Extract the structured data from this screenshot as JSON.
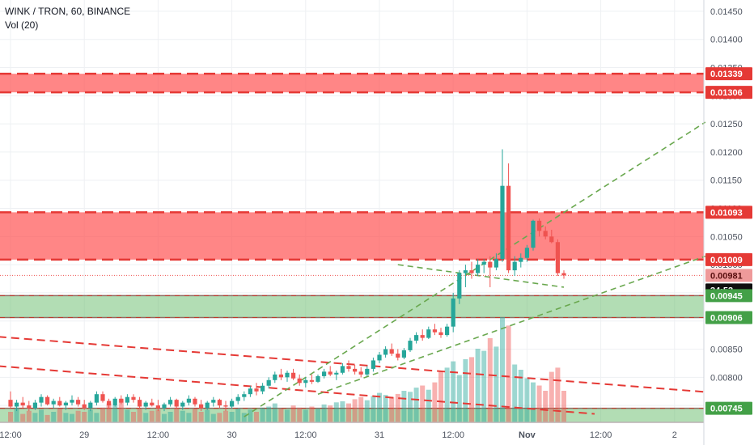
{
  "header": {
    "symbol_line": "WINK / TRON, 60, BINANCE",
    "indicator_line": "Vol (20)"
  },
  "colors": {
    "up": "#26a69a",
    "down": "#ef5350",
    "resistance_zone": "#ff5252",
    "support_zone": "#66bb6a",
    "trend_red": "#e53935",
    "trend_green": "#6aa84f",
    "label_dark": "#0f0f0f"
  },
  "chart_data": {
    "type": "candlestick",
    "symbol": "WINK / TRON",
    "interval": "60",
    "exchange": "BINANCE",
    "y_axis": {
      "ticks": [
        0.0145,
        0.014,
        0.0135,
        0.013,
        0.0125,
        0.012,
        0.0115,
        0.011,
        0.0105,
        0.01,
        0.0095,
        0.009,
        0.0085,
        0.008,
        0.0075
      ],
      "tick_labels": [
        "0.01450",
        "0.01400",
        "0.01350",
        "0.01300",
        "0.01250",
        "0.01200",
        "0.01150",
        "0.01100",
        "0.01050",
        "0.01000",
        "0.00950",
        "0.00900",
        "0.00850",
        "0.00800",
        "0.00750"
      ],
      "range": [
        0.0072,
        0.0147
      ]
    },
    "x_axis": {
      "tick_labels": [
        "12:00",
        "29",
        "12:00",
        "30",
        "12:00",
        "31",
        "12:00",
        "Nov",
        "12:00",
        "2"
      ],
      "tick_bars": [
        0,
        12,
        24,
        36,
        48,
        60,
        72,
        84,
        96,
        108
      ]
    },
    "price_labels": [
      {
        "value": "0.01339",
        "style": "red"
      },
      {
        "value": "0.01306",
        "style": "red"
      },
      {
        "value": "0.01093",
        "style": "red"
      },
      {
        "value": "0.01009",
        "style": "red"
      },
      {
        "value": "0.00981",
        "style": "light-red"
      },
      {
        "value": "34:53",
        "style": "dark"
      },
      {
        "value": "0.00945",
        "style": "green"
      },
      {
        "value": "0.00906",
        "style": "green"
      },
      {
        "value": "0.00745",
        "style": "green"
      }
    ],
    "last_price": 0.00981,
    "zones": [
      {
        "kind": "resistance",
        "top": 0.01339,
        "bottom": 0.01306
      },
      {
        "kind": "resistance",
        "top": 0.01093,
        "bottom": 0.01009
      },
      {
        "kind": "support",
        "top": 0.00945,
        "bottom": 0.00906
      },
      {
        "kind": "support",
        "top": 0.00745,
        "bottom": 0.0072
      }
    ],
    "trendlines": [
      {
        "color": "red",
        "bar1": -2,
        "p1": 0.00872,
        "bar2": 113,
        "p2": 0.00774
      },
      {
        "color": "red",
        "bar1": -2,
        "p1": 0.0082,
        "bar2": 95,
        "p2": 0.00735
      },
      {
        "color": "green",
        "bar1": 38,
        "p1": 0.0073,
        "bar2": 113,
        "p2": 0.01253
      },
      {
        "color": "green",
        "bar1": 50,
        "p1": 0.0077,
        "bar2": 113,
        "p2": 0.01015
      },
      {
        "color": "green",
        "bar1": 63,
        "p1": 0.01,
        "bar2": 90,
        "p2": 0.0096
      }
    ],
    "ohlc": [
      [
        0.0076,
        0.00775,
        0.00745,
        0.00748
      ],
      [
        0.00748,
        0.0076,
        0.0074,
        0.00755
      ],
      [
        0.00755,
        0.00765,
        0.00745,
        0.0075
      ],
      [
        0.0075,
        0.00758,
        0.0074,
        0.00745
      ],
      [
        0.00745,
        0.0076,
        0.00742,
        0.00755
      ],
      [
        0.00755,
        0.0077,
        0.00748,
        0.00765
      ],
      [
        0.00765,
        0.00768,
        0.0075,
        0.00752
      ],
      [
        0.00752,
        0.00762,
        0.00745,
        0.00758
      ],
      [
        0.00758,
        0.00765,
        0.00748,
        0.0075
      ],
      [
        0.0075,
        0.00758,
        0.00742,
        0.00755
      ],
      [
        0.00755,
        0.00768,
        0.0075,
        0.0076
      ],
      [
        0.0076,
        0.00765,
        0.00748,
        0.00752
      ],
      [
        0.00752,
        0.0076,
        0.00742,
        0.00745
      ],
      [
        0.00745,
        0.00758,
        0.0074,
        0.00755
      ],
      [
        0.00755,
        0.00775,
        0.0075,
        0.0077
      ],
      [
        0.0077,
        0.00775,
        0.00755,
        0.00758
      ],
      [
        0.00758,
        0.00762,
        0.00745,
        0.0075
      ],
      [
        0.0075,
        0.00765,
        0.00748,
        0.00762
      ],
      [
        0.00762,
        0.00768,
        0.00752,
        0.00755
      ],
      [
        0.00755,
        0.0077,
        0.0075,
        0.00765
      ],
      [
        0.00765,
        0.0077,
        0.00755,
        0.0076
      ],
      [
        0.0076,
        0.00765,
        0.00745,
        0.00748
      ],
      [
        0.00748,
        0.00758,
        0.00742,
        0.00755
      ],
      [
        0.00755,
        0.00762,
        0.00748,
        0.0075
      ],
      [
        0.0075,
        0.0076,
        0.0074,
        0.00745
      ],
      [
        0.00745,
        0.00755,
        0.0074,
        0.00752
      ],
      [
        0.00752,
        0.00765,
        0.00748,
        0.0076
      ],
      [
        0.0076,
        0.00762,
        0.00745,
        0.00748
      ],
      [
        0.00748,
        0.00758,
        0.00742,
        0.00755
      ],
      [
        0.00755,
        0.00768,
        0.0075,
        0.00762
      ],
      [
        0.00762,
        0.00765,
        0.00748,
        0.00752
      ],
      [
        0.00752,
        0.0076,
        0.0074,
        0.00745
      ],
      [
        0.00745,
        0.00758,
        0.00742,
        0.00755
      ],
      [
        0.00755,
        0.00765,
        0.00748,
        0.0076
      ],
      [
        0.0076,
        0.00762,
        0.00745,
        0.0075
      ],
      [
        0.0075,
        0.00758,
        0.0074,
        0.00748
      ],
      [
        0.00748,
        0.00762,
        0.00745,
        0.00758
      ],
      [
        0.00758,
        0.0077,
        0.00752,
        0.00765
      ],
      [
        0.00765,
        0.00775,
        0.00758,
        0.0077
      ],
      [
        0.0077,
        0.00785,
        0.00765,
        0.0078
      ],
      [
        0.0078,
        0.0079,
        0.00768,
        0.00775
      ],
      [
        0.00775,
        0.0079,
        0.0077,
        0.00785
      ],
      [
        0.00785,
        0.008,
        0.0078,
        0.00795
      ],
      [
        0.00795,
        0.0081,
        0.0079,
        0.00805
      ],
      [
        0.00805,
        0.00815,
        0.00795,
        0.008
      ],
      [
        0.008,
        0.00812,
        0.00792,
        0.00808
      ],
      [
        0.00808,
        0.00815,
        0.00795,
        0.00798
      ],
      [
        0.00798,
        0.00805,
        0.00785,
        0.0079
      ],
      [
        0.0079,
        0.008,
        0.00782,
        0.00795
      ],
      [
        0.00795,
        0.00805,
        0.00788,
        0.00792
      ],
      [
        0.00792,
        0.00805,
        0.0079,
        0.00802
      ],
      [
        0.00802,
        0.00815,
        0.00798,
        0.0081
      ],
      [
        0.0081,
        0.0082,
        0.00802,
        0.00805
      ],
      [
        0.00805,
        0.00812,
        0.00795,
        0.00808
      ],
      [
        0.00808,
        0.00825,
        0.00805,
        0.0082
      ],
      [
        0.0082,
        0.0083,
        0.0081,
        0.00815
      ],
      [
        0.00815,
        0.00822,
        0.00805,
        0.0081
      ],
      [
        0.0081,
        0.00818,
        0.008,
        0.00805
      ],
      [
        0.00805,
        0.0082,
        0.00802,
        0.00815
      ],
      [
        0.00815,
        0.00835,
        0.0081,
        0.0083
      ],
      [
        0.0083,
        0.00845,
        0.00825,
        0.0084
      ],
      [
        0.0084,
        0.00855,
        0.00835,
        0.0085
      ],
      [
        0.0085,
        0.0086,
        0.00838,
        0.00842
      ],
      [
        0.00842,
        0.0085,
        0.0083,
        0.00835
      ],
      [
        0.00835,
        0.00852,
        0.00832,
        0.00848
      ],
      [
        0.00848,
        0.0087,
        0.00845,
        0.00865
      ],
      [
        0.00865,
        0.0088,
        0.0086,
        0.00875
      ],
      [
        0.00875,
        0.00885,
        0.00865,
        0.0087
      ],
      [
        0.0087,
        0.0089,
        0.00868,
        0.00885
      ],
      [
        0.00885,
        0.00895,
        0.00875,
        0.0088
      ],
      [
        0.0088,
        0.00888,
        0.0087,
        0.00875
      ],
      [
        0.00875,
        0.00895,
        0.00872,
        0.0089
      ],
      [
        0.0089,
        0.0095,
        0.0088,
        0.0094
      ],
      [
        0.0094,
        0.0099,
        0.0093,
        0.00985
      ],
      [
        0.00985,
        0.01,
        0.0096,
        0.0099
      ],
      [
        0.0099,
        0.01005,
        0.00975,
        0.00985
      ],
      [
        0.00985,
        0.0101,
        0.0098,
        0.01
      ],
      [
        0.01,
        0.0101,
        0.00985,
        0.01005
      ],
      [
        0.01005,
        0.01015,
        0.0096,
        0.00995
      ],
      [
        0.00995,
        0.0102,
        0.0099,
        0.0101
      ],
      [
        0.0101,
        0.01205,
        0.01005,
        0.0114
      ],
      [
        0.0114,
        0.0118,
        0.00985,
        0.0099
      ],
      [
        0.0099,
        0.01015,
        0.0098,
        0.01005
      ],
      [
        0.01005,
        0.0102,
        0.00995,
        0.01012
      ],
      [
        0.01012,
        0.01035,
        0.01005,
        0.0103
      ],
      [
        0.0103,
        0.0108,
        0.01025,
        0.01078
      ],
      [
        0.01078,
        0.01082,
        0.0105,
        0.0106
      ],
      [
        0.0106,
        0.01068,
        0.01045,
        0.0105
      ],
      [
        0.0105,
        0.01062,
        0.01038,
        0.0104
      ],
      [
        0.0104,
        0.01045,
        0.0098,
        0.00985
      ],
      [
        0.00985,
        0.0099,
        0.00975,
        0.00981
      ]
    ],
    "volume": [
      10,
      14,
      8,
      11,
      9,
      12,
      7,
      10,
      13,
      9,
      8,
      11,
      10,
      12,
      9,
      14,
      18,
      16,
      22,
      12,
      10,
      13,
      9,
      11,
      12,
      8,
      10,
      14,
      11,
      9,
      13,
      10,
      12,
      8,
      9,
      11,
      10,
      13,
      9,
      12,
      10,
      14,
      15,
      18,
      13,
      12,
      16,
      14,
      12,
      15,
      13,
      17,
      16,
      19,
      20,
      18,
      22,
      24,
      21,
      25,
      28,
      26,
      24,
      27,
      30,
      29,
      33,
      35,
      31,
      38,
      48,
      52,
      58,
      45,
      60,
      62,
      70,
      68,
      80,
      72,
      100,
      92,
      55,
      50,
      42,
      38,
      35,
      30,
      48,
      52,
      30
    ]
  }
}
